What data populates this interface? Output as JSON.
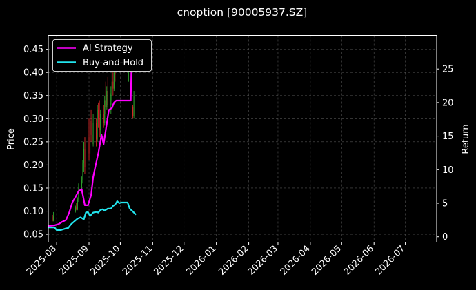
{
  "chart_data": {
    "type": "line",
    "title": "cnoption [90005937.SZ]",
    "xlabel": "",
    "ylabel": "Price",
    "ylabel_right": "Return",
    "x_ticks": [
      "2025-08",
      "2025-09",
      "2025-10",
      "2025-11",
      "2025-12",
      "2026-01",
      "2026-02",
      "2026-03",
      "2026-04",
      "2026-05",
      "2026-06",
      "2026-07"
    ],
    "x_range": [
      "2025-07-24",
      "2026-07-31"
    ],
    "ylim": [
      0.033,
      0.48
    ],
    "y_ticks": [
      0.05,
      0.1,
      0.15,
      0.2,
      0.25,
      0.3,
      0.35,
      0.4,
      0.45
    ],
    "y_tick_labels": [
      "0.05",
      "0.10",
      "0.15",
      "0.20",
      "0.25",
      "0.30",
      "0.35",
      "0.40",
      "0.45"
    ],
    "y2lim": [
      -0.8,
      30
    ],
    "y2_ticks": [
      0,
      5,
      10,
      15,
      20,
      25
    ],
    "y2_tick_labels": [
      "0",
      "5",
      "10",
      "15",
      "20",
      "25"
    ],
    "grid": true,
    "legend_position": "top-left",
    "colors": {
      "background": "#000000",
      "up": "#2ca02c",
      "down": "#d62728",
      "ai_strategy": "#ff00ff",
      "buy_and_hold": "#22e5ee",
      "grid": "#555555"
    },
    "series": [
      {
        "name": "AI Strategy",
        "axis": "right",
        "x": [
          "2025-07-24",
          "2025-07-30",
          "2025-08-03",
          "2025-08-06",
          "2025-08-10",
          "2025-08-13",
          "2025-08-16",
          "2025-08-19",
          "2025-08-22",
          "2025-08-25",
          "2025-08-28",
          "2025-08-31",
          "2025-09-03",
          "2025-09-05",
          "2025-09-07",
          "2025-09-10",
          "2025-09-13",
          "2025-09-15",
          "2025-09-17",
          "2025-09-20",
          "2025-09-23",
          "2025-09-25",
          "2025-09-27",
          "2025-09-29",
          "2025-10-02",
          "2025-10-05",
          "2025-10-08",
          "2025-10-11",
          "2025-10-12",
          "2025-10-13"
        ],
        "values": [
          1.6,
          1.7,
          1.9,
          2.2,
          2.5,
          3.6,
          5.1,
          5.9,
          6.8,
          7.1,
          4.7,
          4.7,
          6.2,
          8.9,
          10.4,
          12.5,
          15.2,
          13.8,
          15.8,
          18.9,
          19.2,
          20.0,
          20.3,
          20.3,
          20.3,
          20.3,
          20.3,
          20.3,
          28.0,
          29.0
        ]
      },
      {
        "name": "Buy-and-Hold",
        "axis": "right",
        "x": [
          "2025-07-24",
          "2025-07-30",
          "2025-08-01",
          "2025-08-05",
          "2025-08-09",
          "2025-08-12",
          "2025-08-15",
          "2025-08-18",
          "2025-08-21",
          "2025-08-24",
          "2025-08-27",
          "2025-08-29",
          "2025-08-31",
          "2025-09-02",
          "2025-09-05",
          "2025-09-08",
          "2025-09-10",
          "2025-09-12",
          "2025-09-14",
          "2025-09-16",
          "2025-09-19",
          "2025-09-22",
          "2025-09-24",
          "2025-09-26",
          "2025-09-28",
          "2025-09-30",
          "2025-10-02",
          "2025-10-05",
          "2025-10-08",
          "2025-10-10",
          "2025-10-12",
          "2025-10-14",
          "2025-10-16"
        ],
        "values": [
          1.4,
          1.4,
          1.0,
          1.0,
          1.2,
          1.3,
          1.9,
          2.3,
          2.7,
          2.9,
          2.6,
          3.6,
          3.7,
          3.1,
          3.6,
          3.7,
          3.6,
          4.0,
          4.1,
          3.9,
          4.2,
          4.2,
          4.6,
          4.8,
          5.3,
          5.0,
          5.1,
          5.1,
          5.1,
          4.2,
          3.9,
          3.6,
          3.3
        ]
      }
    ],
    "candles": [
      {
        "x": "2025-07-28",
        "o": 0.087,
        "h": 0.092,
        "l": 0.078,
        "c": 0.08
      },
      {
        "x": "2025-07-29",
        "o": 0.08,
        "h": 0.098,
        "l": 0.078,
        "c": 0.09
      },
      {
        "x": "2025-08-19",
        "o": 0.1,
        "h": 0.112,
        "l": 0.097,
        "c": 0.108
      },
      {
        "x": "2025-08-20",
        "o": 0.108,
        "h": 0.118,
        "l": 0.102,
        "c": 0.104
      },
      {
        "x": "2025-08-21",
        "o": 0.104,
        "h": 0.13,
        "l": 0.102,
        "c": 0.125
      },
      {
        "x": "2025-08-22",
        "o": 0.125,
        "h": 0.16,
        "l": 0.12,
        "c": 0.15
      },
      {
        "x": "2025-08-25",
        "o": 0.15,
        "h": 0.175,
        "l": 0.14,
        "c": 0.168
      },
      {
        "x": "2025-08-26",
        "o": 0.168,
        "h": 0.21,
        "l": 0.16,
        "c": 0.205
      },
      {
        "x": "2025-08-27",
        "o": 0.205,
        "h": 0.25,
        "l": 0.185,
        "c": 0.235
      },
      {
        "x": "2025-08-28",
        "o": 0.235,
        "h": 0.26,
        "l": 0.18,
        "c": 0.195
      },
      {
        "x": "2025-08-29",
        "o": 0.195,
        "h": 0.27,
        "l": 0.19,
        "c": 0.26
      },
      {
        "x": "2025-09-01",
        "o": 0.26,
        "h": 0.3,
        "l": 0.21,
        "c": 0.225
      },
      {
        "x": "2025-09-02",
        "o": 0.225,
        "h": 0.31,
        "l": 0.215,
        "c": 0.295
      },
      {
        "x": "2025-09-03",
        "o": 0.295,
        "h": 0.32,
        "l": 0.25,
        "c": 0.265
      },
      {
        "x": "2025-09-04",
        "o": 0.265,
        "h": 0.3,
        "l": 0.23,
        "c": 0.245
      },
      {
        "x": "2025-09-05",
        "o": 0.245,
        "h": 0.31,
        "l": 0.24,
        "c": 0.29
      },
      {
        "x": "2025-09-08",
        "o": 0.29,
        "h": 0.3,
        "l": 0.24,
        "c": 0.255
      },
      {
        "x": "2025-09-09",
        "o": 0.255,
        "h": 0.33,
        "l": 0.25,
        "c": 0.32
      },
      {
        "x": "2025-09-10",
        "o": 0.32,
        "h": 0.335,
        "l": 0.28,
        "c": 0.3
      },
      {
        "x": "2025-09-11",
        "o": 0.3,
        "h": 0.34,
        "l": 0.26,
        "c": 0.275
      },
      {
        "x": "2025-09-12",
        "o": 0.275,
        "h": 0.32,
        "l": 0.26,
        "c": 0.31
      },
      {
        "x": "2025-09-15",
        "o": 0.31,
        "h": 0.33,
        "l": 0.28,
        "c": 0.29
      },
      {
        "x": "2025-09-16",
        "o": 0.29,
        "h": 0.35,
        "l": 0.285,
        "c": 0.34
      },
      {
        "x": "2025-09-17",
        "o": 0.34,
        "h": 0.38,
        "l": 0.31,
        "c": 0.325
      },
      {
        "x": "2025-09-18",
        "o": 0.325,
        "h": 0.37,
        "l": 0.32,
        "c": 0.36
      },
      {
        "x": "2025-09-19",
        "o": 0.36,
        "h": 0.39,
        "l": 0.32,
        "c": 0.33
      },
      {
        "x": "2025-09-22",
        "o": 0.33,
        "h": 0.37,
        "l": 0.31,
        "c": 0.355
      },
      {
        "x": "2025-09-23",
        "o": 0.355,
        "h": 0.4,
        "l": 0.34,
        "c": 0.38
      },
      {
        "x": "2025-09-24",
        "o": 0.38,
        "h": 0.41,
        "l": 0.35,
        "c": 0.365
      },
      {
        "x": "2025-09-25",
        "o": 0.365,
        "h": 0.42,
        "l": 0.36,
        "c": 0.41
      },
      {
        "x": "2025-09-26",
        "o": 0.41,
        "h": 0.43,
        "l": 0.38,
        "c": 0.395
      },
      {
        "x": "2025-10-09",
        "o": 0.4,
        "h": 0.43,
        "l": 0.38,
        "c": 0.42
      },
      {
        "x": "2025-10-13",
        "o": 0.325,
        "h": 0.33,
        "l": 0.3,
        "c": 0.305
      },
      {
        "x": "2025-10-14",
        "o": 0.305,
        "h": 0.36,
        "l": 0.3,
        "c": 0.35
      }
    ]
  }
}
